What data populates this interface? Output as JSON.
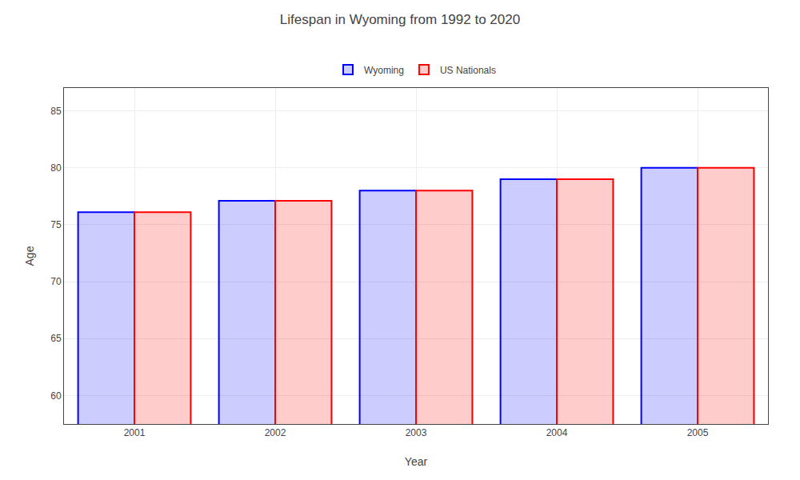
{
  "chart_data": {
    "type": "bar",
    "title": "Lifespan in Wyoming from 1992 to 2020",
    "x_label": "Year",
    "y_label": "Age",
    "categories": [
      "2001",
      "2002",
      "2003",
      "2004",
      "2005"
    ],
    "series": [
      {
        "name": "Wyoming",
        "color": "#0000ff",
        "values": [
          76.1,
          77.1,
          78.0,
          79.0,
          80.0
        ]
      },
      {
        "name": "US Nationals",
        "color": "#ff0000",
        "values": [
          76.1,
          77.1,
          78.0,
          79.0,
          80.0
        ]
      }
    ],
    "ylim": [
      57.5,
      87
    ],
    "yticks": [
      60,
      65,
      70,
      75,
      80,
      85
    ],
    "grid": true,
    "legend": "top"
  }
}
